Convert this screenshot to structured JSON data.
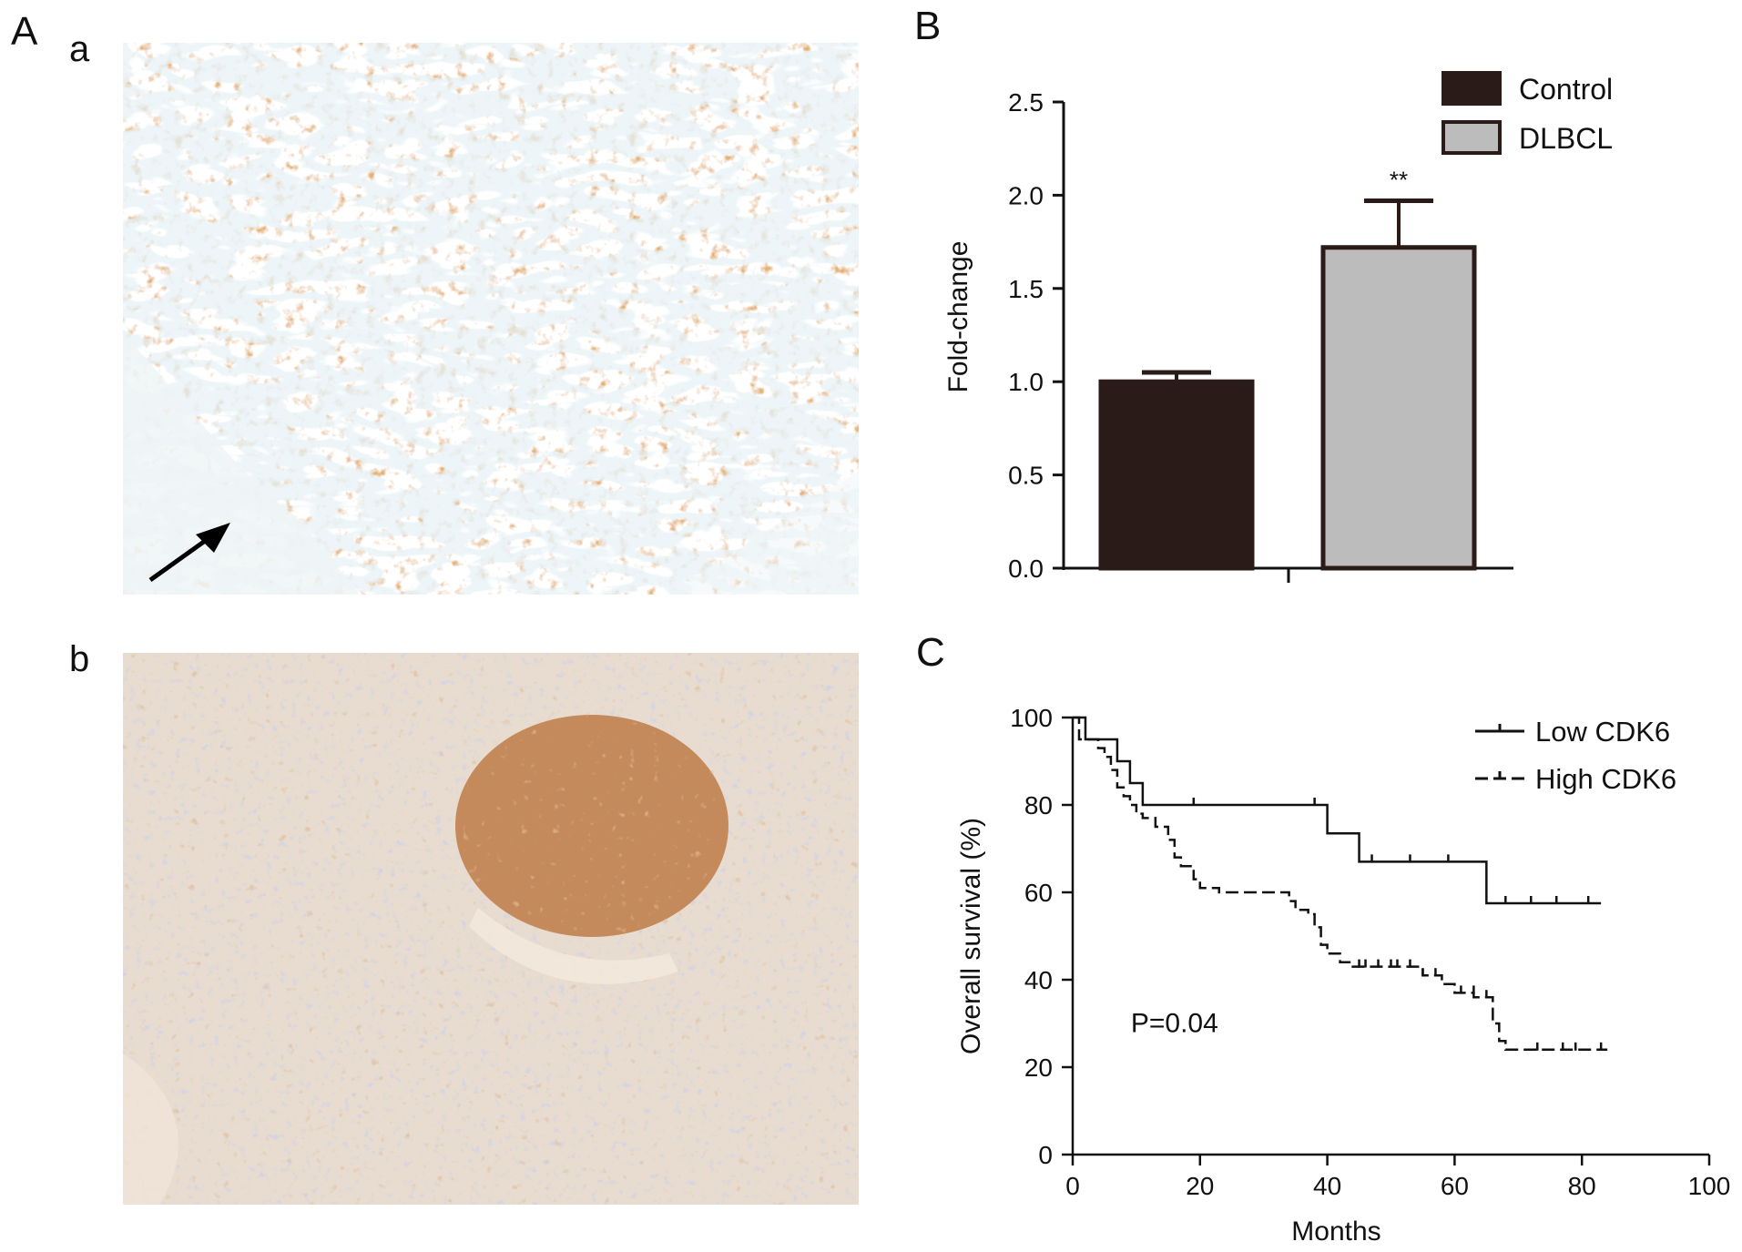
{
  "panels": {
    "A": {
      "letter": "A",
      "sub_a": "a",
      "sub_b": "b"
    },
    "B": {
      "letter": "B"
    },
    "C": {
      "letter": "C"
    }
  },
  "images": {
    "a": {
      "description_colors": {
        "stain": "#c8732c",
        "background": "#e9d2b6",
        "stroma": "#cfe3ea"
      }
    },
    "b": {
      "description_colors": {
        "stain": "#c08a5a",
        "background": "#e8dccf",
        "nuclei": "#9aa0cf"
      }
    }
  },
  "chart_data": [
    {
      "type": "bar",
      "panel": "B",
      "categories": [
        "Control",
        "DLBCL"
      ],
      "values": [
        1.0,
        1.72
      ],
      "errors": [
        0.05,
        0.25
      ],
      "colors": [
        "#2a1a18",
        "#bcbcbc"
      ],
      "annotation": "**",
      "ylabel": "Fold-change",
      "xlabel": "",
      "ylim": [
        0,
        2.5
      ],
      "yticks": [
        "0.0",
        "0.5",
        "1.0",
        "1.5",
        "2.0",
        "2.5"
      ],
      "legend": {
        "placement": "top-right",
        "entries": [
          "Control",
          "DLBCL"
        ]
      },
      "grid": false
    },
    {
      "type": "line",
      "panel": "C",
      "xlabel": "Months",
      "ylabel": "Overall survival (%)",
      "xlim": [
        0,
        100
      ],
      "ylim": [
        0,
        100
      ],
      "xticks": [
        "0",
        "20",
        "40",
        "60",
        "80",
        "100"
      ],
      "yticks": [
        "0",
        "20",
        "40",
        "60",
        "80",
        "100"
      ],
      "annotation": "P=0.04",
      "legend": {
        "placement": "top-right",
        "entries": [
          "Low CDK6",
          "High CDK6"
        ]
      },
      "grid": false,
      "series": [
        {
          "name": "Low CDK6",
          "style": "solid",
          "step_x": [
            0,
            2,
            4,
            7,
            9,
            11,
            40,
            45,
            65,
            83
          ],
          "step_y": [
            100,
            95,
            95,
            90,
            85,
            80,
            73.5,
            67,
            57.5,
            57.5
          ],
          "censor_x": [
            19,
            38,
            47,
            53,
            59,
            68,
            72,
            76,
            81
          ],
          "censor_y": [
            80,
            80,
            67,
            67,
            67,
            57.5,
            57.5,
            57.5,
            57.5
          ]
        },
        {
          "name": "High CDK6",
          "style": "dashed",
          "step_x": [
            0,
            1,
            4,
            5,
            6,
            7,
            8,
            9,
            10,
            11,
            13,
            15,
            16,
            17,
            19,
            20,
            23,
            34,
            35,
            37,
            38,
            39,
            40,
            42,
            44,
            49,
            55,
            58,
            60,
            63,
            66,
            67,
            68,
            84
          ],
          "step_y": [
            100,
            95,
            93,
            91,
            88,
            84,
            82,
            80,
            78,
            77,
            75,
            72,
            68,
            66,
            63,
            61,
            60,
            58,
            56,
            55,
            52,
            48,
            46,
            44,
            43,
            43,
            41,
            39,
            37,
            36,
            30,
            26,
            24,
            24
          ],
          "censor_x": [
            45,
            46,
            48,
            50,
            51,
            53,
            55,
            57,
            61,
            63,
            65,
            73,
            77,
            79,
            83
          ],
          "censor_y": [
            43,
            43,
            43,
            43,
            43,
            43,
            41,
            41,
            37,
            37,
            36,
            24,
            24,
            24,
            24
          ]
        }
      ]
    }
  ]
}
